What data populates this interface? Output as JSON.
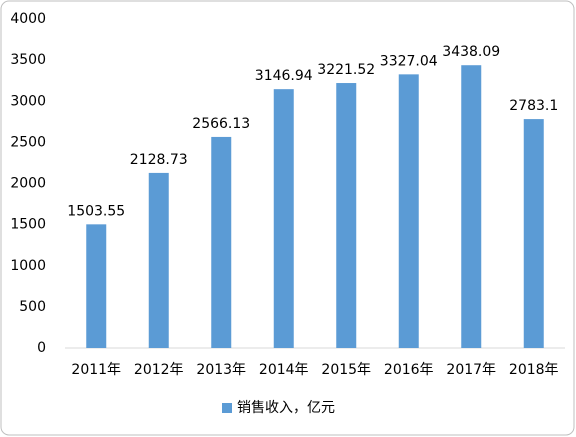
{
  "chart_data": {
    "type": "bar",
    "categories": [
      "2011年",
      "2012年",
      "2013年",
      "2014年",
      "2015年",
      "2016年",
      "2017年",
      "2018年"
    ],
    "series": [
      {
        "name": "销售收入，亿元",
        "color": "#5b9bd5",
        "values": [
          1503.55,
          2128.73,
          2566.13,
          3146.94,
          3221.52,
          3327.04,
          3438.09,
          2783.1
        ]
      }
    ],
    "ylim": [
      0,
      4000
    ],
    "yticks": [
      0,
      500,
      1000,
      1500,
      2000,
      2500,
      3000,
      3500,
      4000
    ],
    "grid": false,
    "legend": "bottom"
  }
}
